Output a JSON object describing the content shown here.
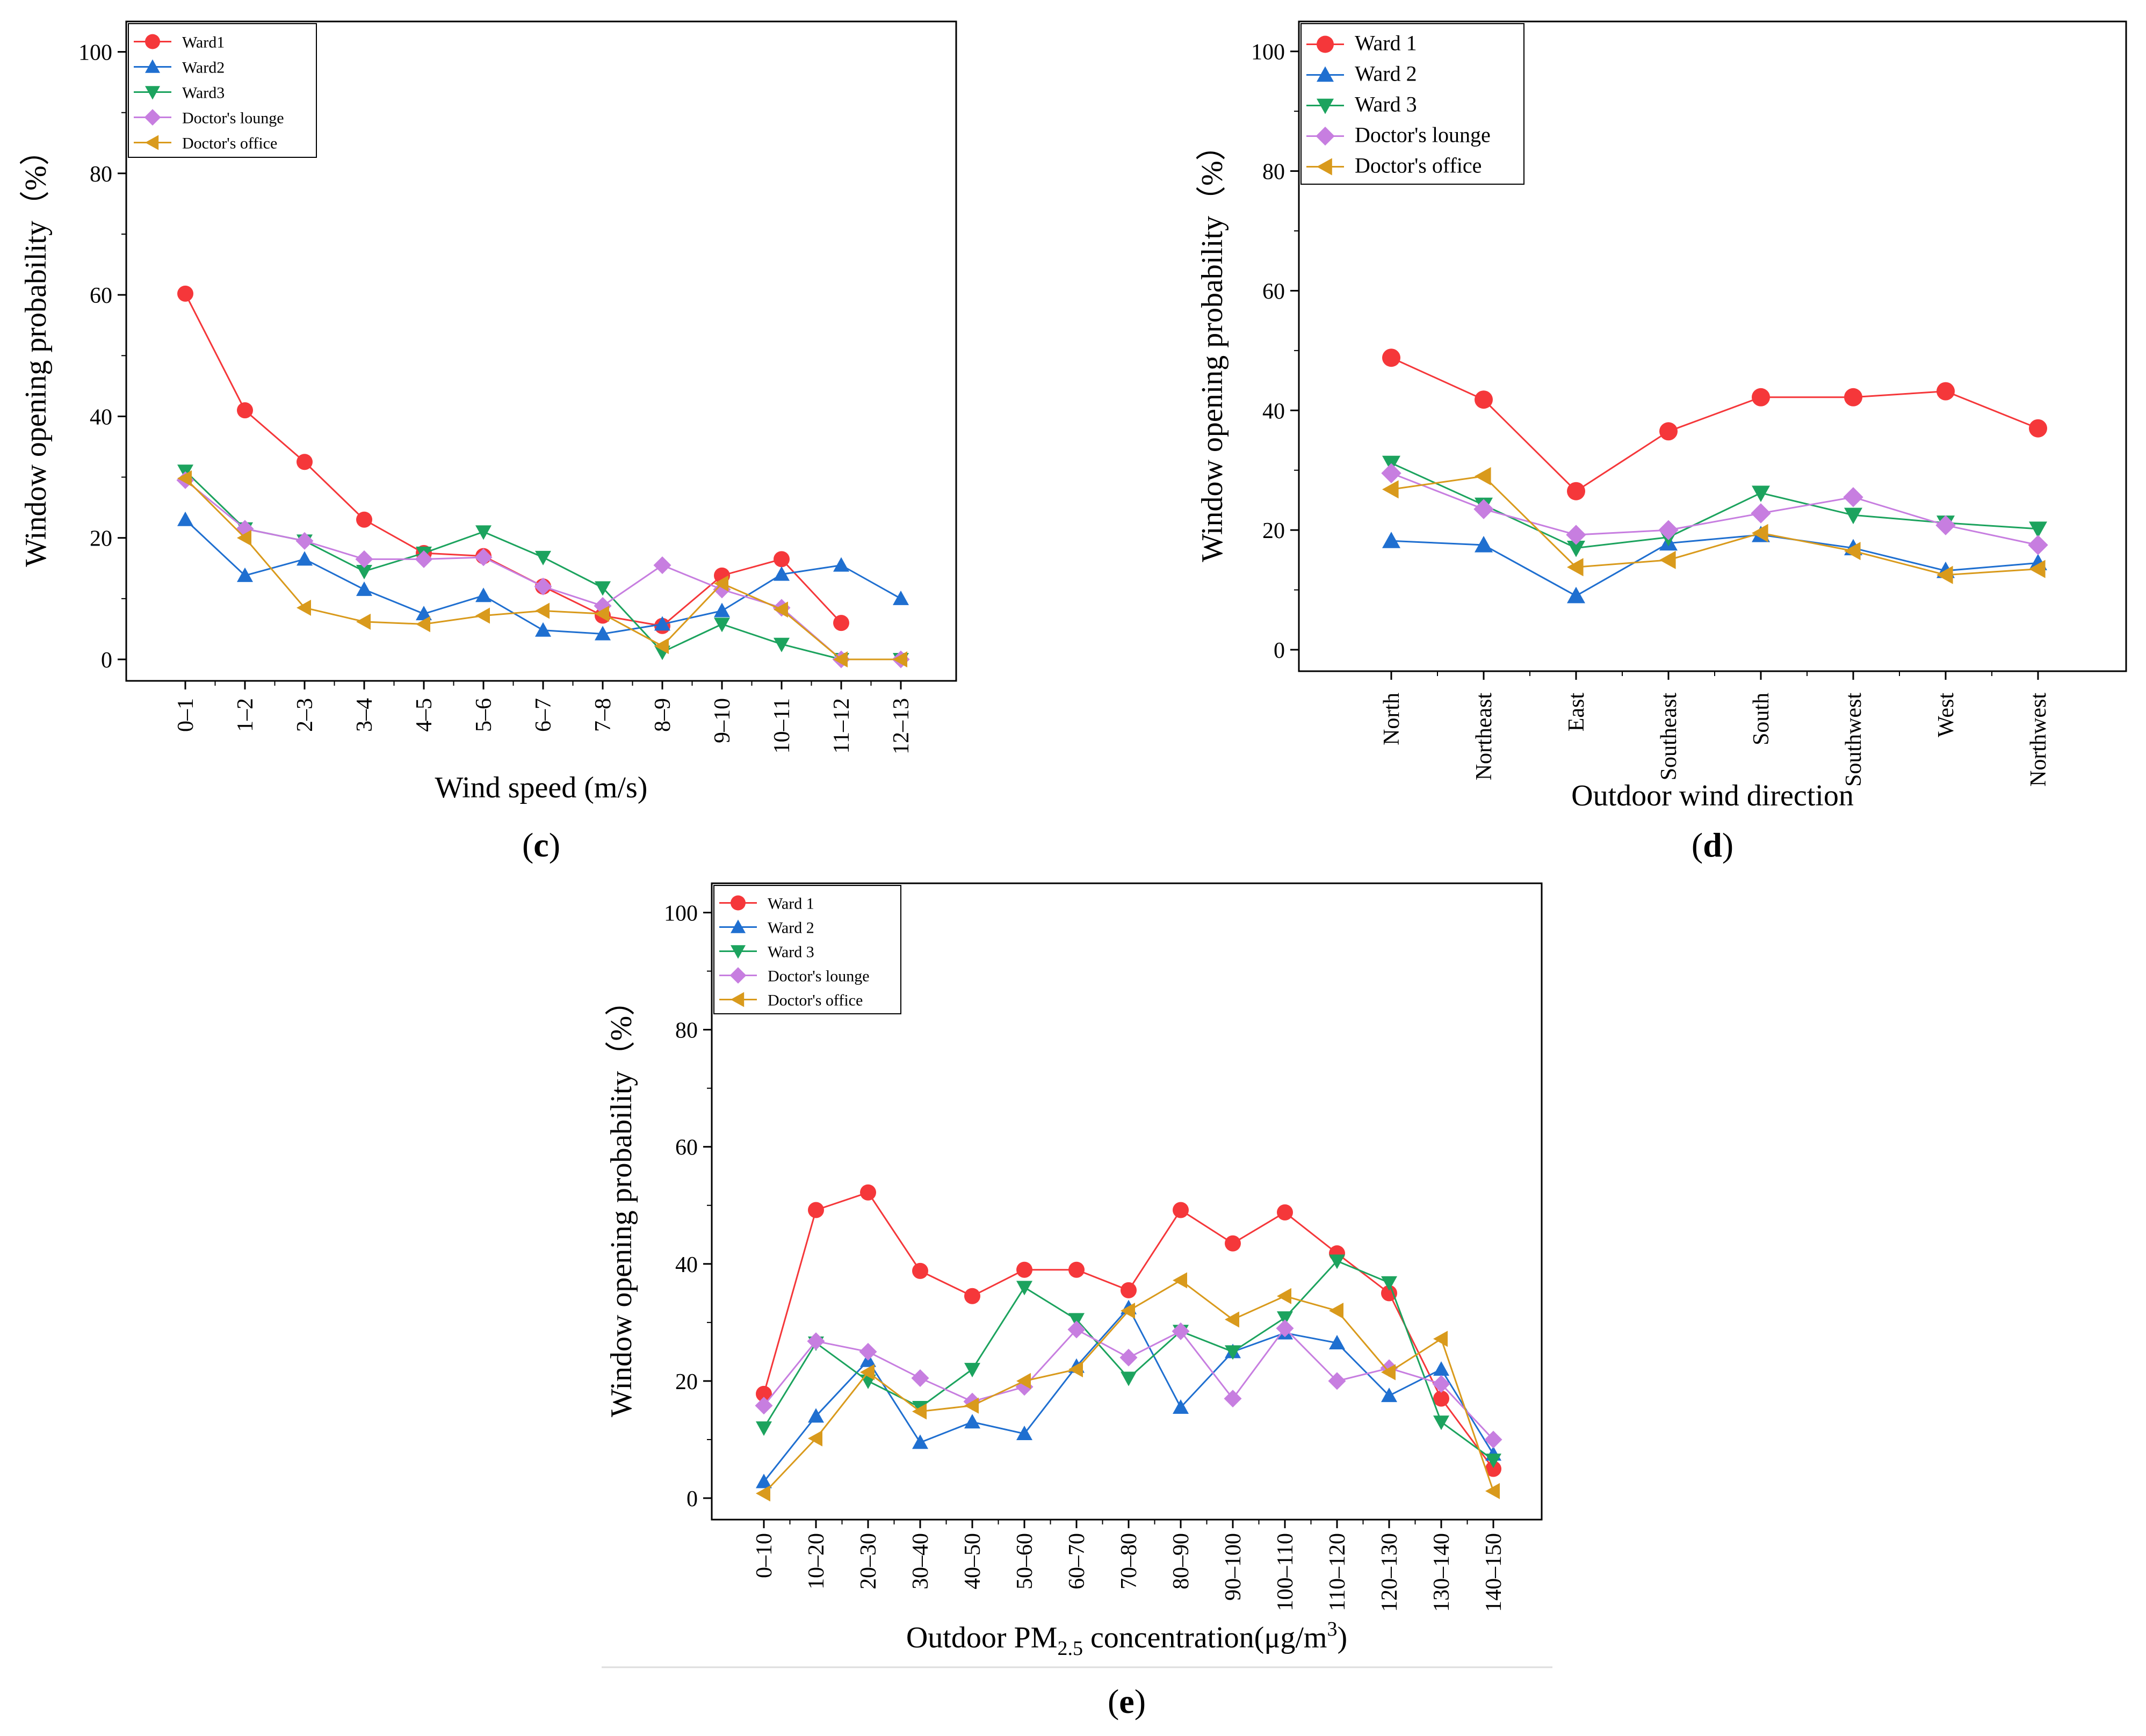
{
  "chart_data": [
    {
      "panel": "c",
      "type": "line",
      "title": "",
      "xlabel": "Wind speed (m/s)",
      "ylabel": "Window opening probability（%）",
      "ylim": [
        0,
        100
      ],
      "yticks": [
        0,
        20,
        40,
        60,
        80,
        100
      ],
      "categories": [
        "0–1",
        "1–2",
        "2–3",
        "3–4",
        "4–5",
        "5–6",
        "6–7",
        "7–8",
        "8–9",
        "9–10",
        "10–11",
        "11–12",
        "12–13"
      ],
      "legend_position": "top-left",
      "series": [
        {
          "name": "Ward1",
          "color": "#f5373a",
          "marker": "circle",
          "values": [
            60.2,
            41.0,
            32.5,
            23.0,
            17.5,
            17.0,
            12.0,
            7.2,
            5.5,
            13.8,
            16.5,
            6.0,
            null
          ]
        },
        {
          "name": "Ward2",
          "color": "#1f6fd0",
          "marker": "triangle-up",
          "values": [
            23.0,
            13.8,
            16.5,
            11.5,
            7.5,
            10.5,
            4.8,
            4.2,
            5.8,
            8.0,
            14.0,
            15.5,
            10.0
          ]
        },
        {
          "name": "Ward3",
          "color": "#1ca35e",
          "marker": "triangle-down",
          "values": [
            31.0,
            21.5,
            19.5,
            14.5,
            17.5,
            21.0,
            16.8,
            11.8,
            1.2,
            5.8,
            2.5,
            0,
            0
          ]
        },
        {
          "name": "Doctor's lounge",
          "color": "#c77ee0",
          "marker": "diamond",
          "values": [
            29.5,
            21.5,
            19.5,
            16.5,
            16.5,
            16.8,
            12.0,
            8.8,
            15.5,
            11.5,
            8.5,
            0,
            0
          ]
        },
        {
          "name": "Doctor's office",
          "color": "#d99a1c",
          "marker": "triangle-left",
          "values": [
            29.8,
            20.0,
            8.5,
            6.2,
            5.8,
            7.2,
            8.0,
            7.5,
            2.2,
            12.5,
            8.2,
            0,
            0
          ]
        }
      ],
      "panel_label": "c"
    },
    {
      "panel": "d",
      "type": "line",
      "title": "",
      "xlabel": "Outdoor wind direction",
      "ylabel": "Window opening probability（%）",
      "ylim": [
        0,
        100
      ],
      "yticks": [
        0,
        20,
        40,
        60,
        80,
        100
      ],
      "categories": [
        "North",
        "Northeast",
        "East",
        "Southeast",
        "South",
        "Southwest",
        "West",
        "Northwest"
      ],
      "legend_position": "top-left",
      "series": [
        {
          "name": "Ward 1",
          "color": "#f5373a",
          "marker": "circle",
          "values": [
            48.8,
            41.8,
            26.5,
            36.5,
            42.2,
            42.2,
            43.2,
            37.0
          ]
        },
        {
          "name": "Ward 2",
          "color": "#1f6fd0",
          "marker": "triangle-up",
          "values": [
            18.2,
            17.5,
            9.0,
            17.8,
            19.2,
            17.0,
            13.2,
            14.5
          ]
        },
        {
          "name": "Ward 3",
          "color": "#1ca35e",
          "marker": "triangle-down",
          "values": [
            31.2,
            24.2,
            17.0,
            18.8,
            26.2,
            22.5,
            21.2,
            20.2
          ]
        },
        {
          "name": "Doctor's lounge",
          "color": "#c77ee0",
          "marker": "diamond",
          "values": [
            29.5,
            23.5,
            19.2,
            20.0,
            22.8,
            25.5,
            20.8,
            17.5
          ]
        },
        {
          "name": "Doctor's office",
          "color": "#d99a1c",
          "marker": "triangle-left",
          "values": [
            26.8,
            29.0,
            13.8,
            15.0,
            19.5,
            16.5,
            12.5,
            13.5
          ]
        }
      ],
      "panel_label": "d"
    },
    {
      "panel": "e",
      "type": "line",
      "title": "",
      "xlabel": "Outdoor PM2.5 concentration(μg/m3)",
      "xlabel_parts": {
        "before": "Outdoor PM",
        "sub": "2.5",
        "middle": " concentration(μg/m",
        "sup": "3",
        "after": ")"
      },
      "ylabel": "Window opening probability（%）",
      "ylim": [
        0,
        100
      ],
      "yticks": [
        0,
        20,
        40,
        60,
        80,
        100
      ],
      "categories": [
        "0–10",
        "10–20",
        "20–30",
        "30–40",
        "40–50",
        "50–60",
        "60–70",
        "70–80",
        "80–90",
        "90–100",
        "100–110",
        "110–120",
        "120–130",
        "130–140",
        "140–150"
      ],
      "legend_position": "top-left",
      "series": [
        {
          "name": "Ward 1",
          "color": "#f5373a",
          "marker": "circle",
          "values": [
            17.8,
            49.2,
            52.2,
            38.8,
            34.5,
            39.0,
            39.0,
            35.5,
            49.2,
            43.5,
            48.8,
            41.8,
            35.0,
            17.0,
            5.0
          ]
        },
        {
          "name": "Ward 2",
          "color": "#1f6fd0",
          "marker": "triangle-up",
          "values": [
            2.8,
            14.0,
            23.5,
            9.5,
            13.0,
            11.0,
            22.5,
            32.5,
            15.5,
            25.0,
            28.2,
            26.5,
            17.5,
            22.0,
            7.5
          ]
        },
        {
          "name": "Ward 3",
          "color": "#1ca35e",
          "marker": "triangle-down",
          "values": [
            12.0,
            26.5,
            20.0,
            15.5,
            22.0,
            36.0,
            30.5,
            20.5,
            28.5,
            25.0,
            30.8,
            40.5,
            36.8,
            13.0,
            6.5
          ]
        },
        {
          "name": "Doctor's lounge",
          "color": "#c77ee0",
          "marker": "diamond",
          "values": [
            15.8,
            26.8,
            25.0,
            20.5,
            16.5,
            19.0,
            28.8,
            24.0,
            28.5,
            17.0,
            29.0,
            20.0,
            22.2,
            19.5,
            10.0
          ]
        },
        {
          "name": "Doctor's office",
          "color": "#d99a1c",
          "marker": "triangle-left",
          "values": [
            0.8,
            10.2,
            21.5,
            14.8,
            15.8,
            20.0,
            22.0,
            32.0,
            37.2,
            30.5,
            34.5,
            32.0,
            21.5,
            27.2,
            1.2
          ]
        }
      ],
      "panel_label": "e"
    }
  ]
}
